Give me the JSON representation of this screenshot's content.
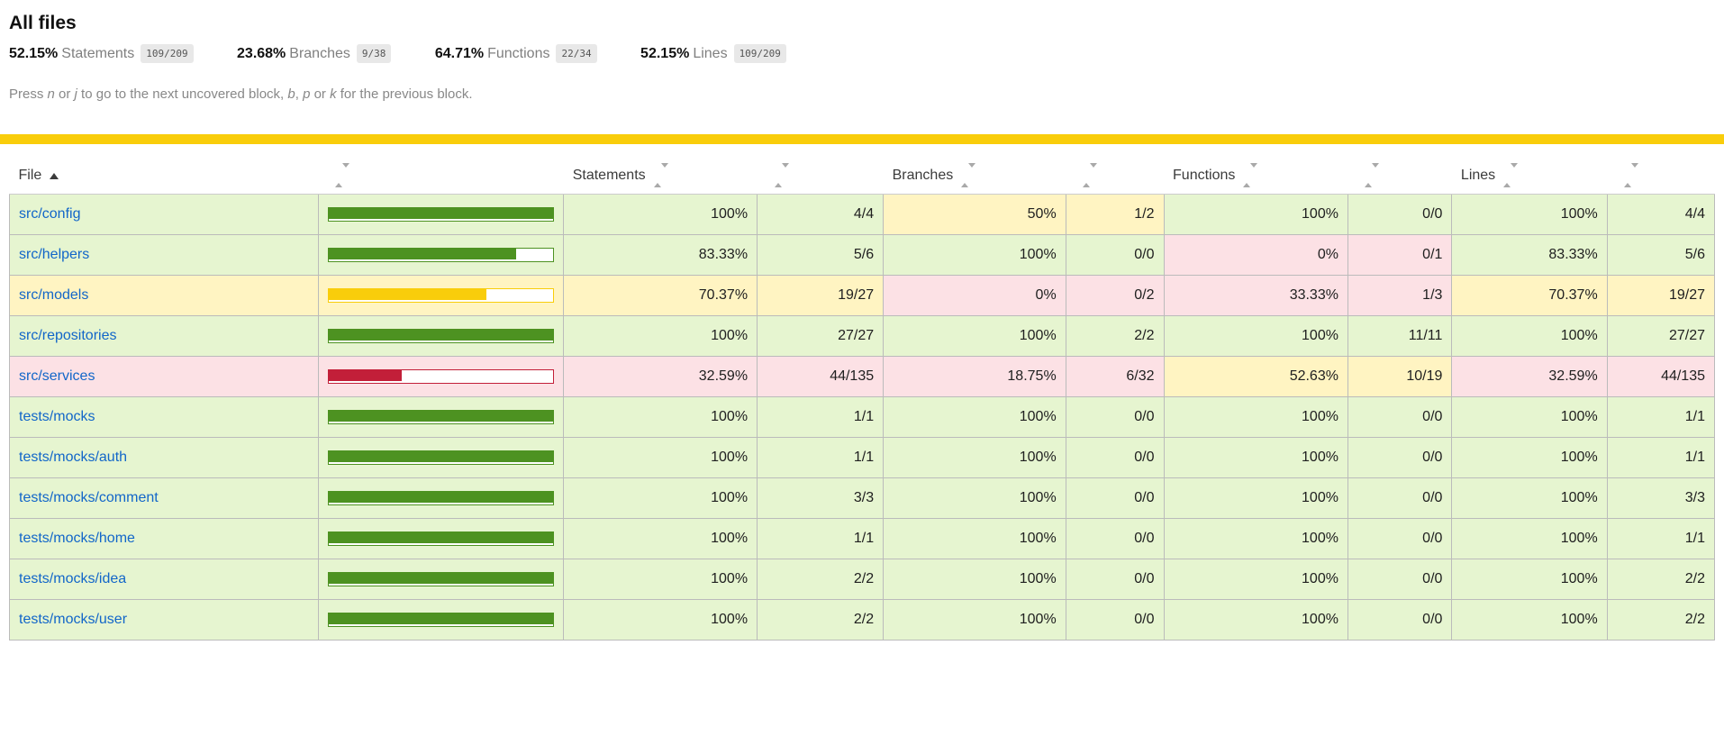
{
  "page": {
    "title": "All files"
  },
  "summary": {
    "metrics": [
      {
        "pct": "52.15%",
        "label": "Statements",
        "fraction": "109/209"
      },
      {
        "pct": "23.68%",
        "label": "Branches",
        "fraction": "9/38"
      },
      {
        "pct": "64.71%",
        "label": "Functions",
        "fraction": "22/34"
      },
      {
        "pct": "52.15%",
        "label": "Lines",
        "fraction": "109/209"
      }
    ]
  },
  "hint": {
    "segments": [
      {
        "t": "Press "
      },
      {
        "t": "n",
        "em": true
      },
      {
        "t": " or "
      },
      {
        "t": "j",
        "em": true
      },
      {
        "t": " to go to the next uncovered block, "
      },
      {
        "t": "b",
        "em": true
      },
      {
        "t": ", "
      },
      {
        "t": "p",
        "em": true
      },
      {
        "t": " or "
      },
      {
        "t": "k",
        "em": true
      },
      {
        "t": " for the previous block."
      }
    ]
  },
  "colors": {
    "status_line": "#f9cd0b",
    "high_bg": "#e6f5d0",
    "medium_bg": "#fff4c2",
    "low_bg": "#fce1e5",
    "high_fill": "#4d9221",
    "medium_fill": "#f9cd0b",
    "low_fill": "#c21f39",
    "link": "#1266c9",
    "fraction_bg": "#e8e8e8"
  },
  "table": {
    "sorted_by": "File",
    "sort_order": "ascending",
    "headers": {
      "file": "File",
      "statements": "Statements",
      "branches": "Branches",
      "functions": "Functions",
      "lines": "Lines"
    },
    "rows": [
      {
        "file": "src/config",
        "level": "high",
        "bar_pct": 100,
        "statements": {
          "pct": "100%",
          "raw": "4/4",
          "level": "high"
        },
        "branches": {
          "pct": "50%",
          "raw": "1/2",
          "level": "medium"
        },
        "functions": {
          "pct": "100%",
          "raw": "0/0",
          "level": "high"
        },
        "lines": {
          "pct": "100%",
          "raw": "4/4",
          "level": "high"
        }
      },
      {
        "file": "src/helpers",
        "level": "high",
        "bar_pct": 83.33,
        "statements": {
          "pct": "83.33%",
          "raw": "5/6",
          "level": "high"
        },
        "branches": {
          "pct": "100%",
          "raw": "0/0",
          "level": "high"
        },
        "functions": {
          "pct": "0%",
          "raw": "0/1",
          "level": "low"
        },
        "lines": {
          "pct": "83.33%",
          "raw": "5/6",
          "level": "high"
        }
      },
      {
        "file": "src/models",
        "level": "medium",
        "bar_pct": 70.37,
        "statements": {
          "pct": "70.37%",
          "raw": "19/27",
          "level": "medium"
        },
        "branches": {
          "pct": "0%",
          "raw": "0/2",
          "level": "low"
        },
        "functions": {
          "pct": "33.33%",
          "raw": "1/3",
          "level": "low"
        },
        "lines": {
          "pct": "70.37%",
          "raw": "19/27",
          "level": "medium"
        }
      },
      {
        "file": "src/repositories",
        "level": "high",
        "bar_pct": 100,
        "statements": {
          "pct": "100%",
          "raw": "27/27",
          "level": "high"
        },
        "branches": {
          "pct": "100%",
          "raw": "2/2",
          "level": "high"
        },
        "functions": {
          "pct": "100%",
          "raw": "11/11",
          "level": "high"
        },
        "lines": {
          "pct": "100%",
          "raw": "27/27",
          "level": "high"
        }
      },
      {
        "file": "src/services",
        "level": "low",
        "bar_pct": 32.59,
        "statements": {
          "pct": "32.59%",
          "raw": "44/135",
          "level": "low"
        },
        "branches": {
          "pct": "18.75%",
          "raw": "6/32",
          "level": "low"
        },
        "functions": {
          "pct": "52.63%",
          "raw": "10/19",
          "level": "medium"
        },
        "lines": {
          "pct": "32.59%",
          "raw": "44/135",
          "level": "low"
        }
      },
      {
        "file": "tests/mocks",
        "level": "high",
        "bar_pct": 100,
        "statements": {
          "pct": "100%",
          "raw": "1/1",
          "level": "high"
        },
        "branches": {
          "pct": "100%",
          "raw": "0/0",
          "level": "high"
        },
        "functions": {
          "pct": "100%",
          "raw": "0/0",
          "level": "high"
        },
        "lines": {
          "pct": "100%",
          "raw": "1/1",
          "level": "high"
        }
      },
      {
        "file": "tests/mocks/auth",
        "level": "high",
        "bar_pct": 100,
        "statements": {
          "pct": "100%",
          "raw": "1/1",
          "level": "high"
        },
        "branches": {
          "pct": "100%",
          "raw": "0/0",
          "level": "high"
        },
        "functions": {
          "pct": "100%",
          "raw": "0/0",
          "level": "high"
        },
        "lines": {
          "pct": "100%",
          "raw": "1/1",
          "level": "high"
        }
      },
      {
        "file": "tests/mocks/comment",
        "level": "high",
        "bar_pct": 100,
        "statements": {
          "pct": "100%",
          "raw": "3/3",
          "level": "high"
        },
        "branches": {
          "pct": "100%",
          "raw": "0/0",
          "level": "high"
        },
        "functions": {
          "pct": "100%",
          "raw": "0/0",
          "level": "high"
        },
        "lines": {
          "pct": "100%",
          "raw": "3/3",
          "level": "high"
        }
      },
      {
        "file": "tests/mocks/home",
        "level": "high",
        "bar_pct": 100,
        "statements": {
          "pct": "100%",
          "raw": "1/1",
          "level": "high"
        },
        "branches": {
          "pct": "100%",
          "raw": "0/0",
          "level": "high"
        },
        "functions": {
          "pct": "100%",
          "raw": "0/0",
          "level": "high"
        },
        "lines": {
          "pct": "100%",
          "raw": "1/1",
          "level": "high"
        }
      },
      {
        "file": "tests/mocks/idea",
        "level": "high",
        "bar_pct": 100,
        "statements": {
          "pct": "100%",
          "raw": "2/2",
          "level": "high"
        },
        "branches": {
          "pct": "100%",
          "raw": "0/0",
          "level": "high"
        },
        "functions": {
          "pct": "100%",
          "raw": "0/0",
          "level": "high"
        },
        "lines": {
          "pct": "100%",
          "raw": "2/2",
          "level": "high"
        }
      },
      {
        "file": "tests/mocks/user",
        "level": "high",
        "bar_pct": 100,
        "statements": {
          "pct": "100%",
          "raw": "2/2",
          "level": "high"
        },
        "branches": {
          "pct": "100%",
          "raw": "0/0",
          "level": "high"
        },
        "functions": {
          "pct": "100%",
          "raw": "0/0",
          "level": "high"
        },
        "lines": {
          "pct": "100%",
          "raw": "2/2",
          "level": "high"
        }
      }
    ]
  }
}
